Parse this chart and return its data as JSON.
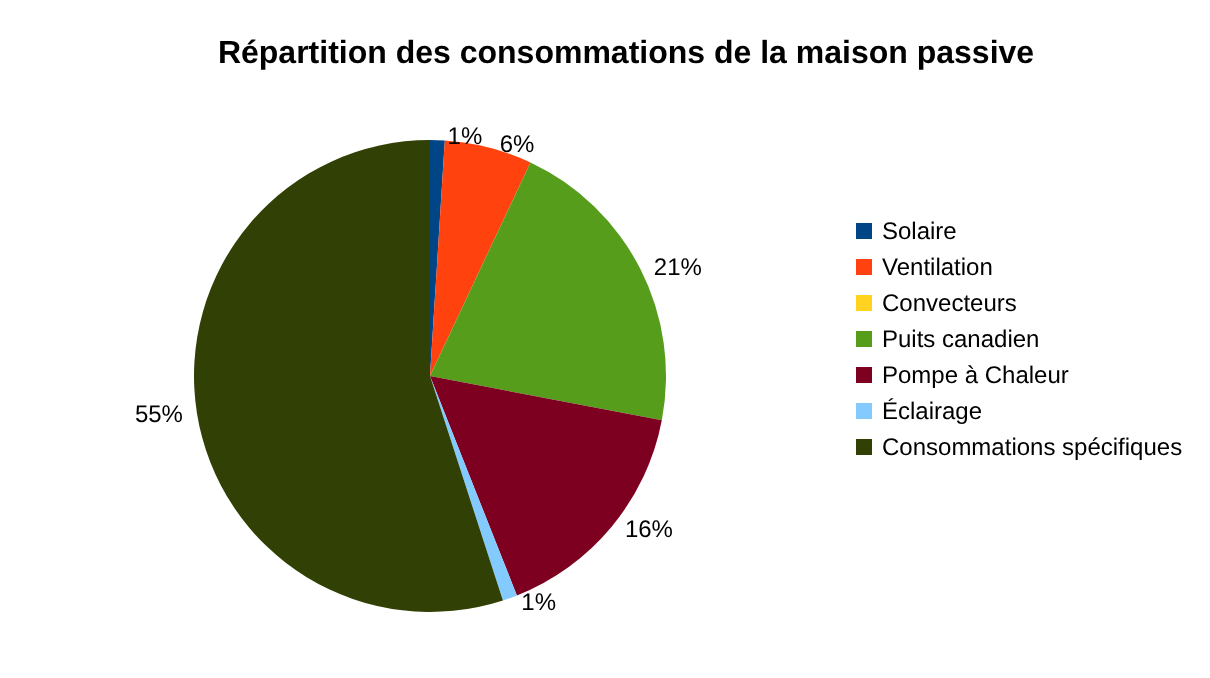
{
  "chart_data": {
    "type": "pie",
    "title": "Répartition des consommations de la maison passive",
    "categories": [
      "Solaire",
      "Ventilation",
      "Convecteurs",
      "Puits canadien",
      "Pompe à Chaleur",
      "Éclairage",
      "Consommations spécifiques"
    ],
    "values": [
      1,
      6,
      0,
      21,
      16,
      1,
      55
    ],
    "colors": [
      "#004586",
      "#ff420e",
      "#ffd320",
      "#579d1c",
      "#7e0021",
      "#83caff",
      "#314004"
    ],
    "value_labels": [
      "1%",
      "6%",
      null,
      "21%",
      "16%",
      "1%",
      "55%"
    ],
    "legend": "right"
  }
}
